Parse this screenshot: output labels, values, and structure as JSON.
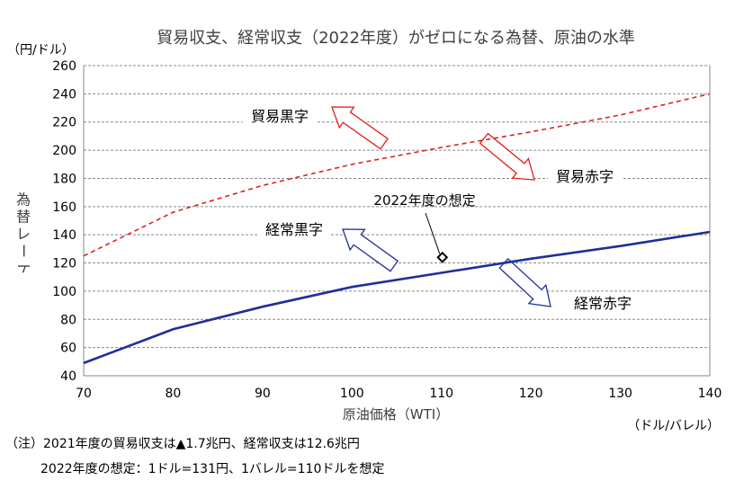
{
  "chart_data": {
    "type": "line",
    "title": "貿易収支、経常収支（2022年度）がゼロになる為替、原油の水準",
    "y_unit": "（円/ドル）",
    "ylabel": "為替レート",
    "xlabel": "原油価格（WTI）",
    "x_unit": "（ドル/バレル）",
    "xlim": [
      70,
      140
    ],
    "ylim": [
      40,
      260
    ],
    "x_ticks": [
      70,
      80,
      90,
      100,
      110,
      120,
      130,
      140
    ],
    "y_ticks": [
      40,
      60,
      80,
      100,
      120,
      140,
      160,
      180,
      200,
      220,
      240,
      260
    ],
    "grid": "horizontal dashed",
    "series": [
      {
        "style": "dashed",
        "color": "#e0201e",
        "x": [
          70,
          80,
          90,
          100,
          110,
          120,
          130,
          140
        ],
        "y": [
          125,
          156,
          175,
          190,
          202,
          213,
          225,
          240
        ]
      },
      {
        "style": "solid",
        "color": "#1f2f9a",
        "x": [
          70,
          80,
          90,
          100,
          110,
          120,
          130,
          140
        ],
        "y": [
          49,
          73,
          89,
          103,
          113,
          123,
          132,
          142
        ]
      }
    ],
    "marker": {
      "x": 110,
      "y": 131,
      "shape": "diamond",
      "label": "2022年度の想定"
    },
    "annotations": {
      "trade_surplus": "貿易黒字",
      "trade_deficit": "貿易赤字",
      "current_surplus": "経常黒字",
      "current_deficit": "経常赤字"
    }
  },
  "notes": {
    "line1": "（注）2021年度の貿易収支は▲1.7兆円、経常収支は12.6兆円",
    "line2": "2022年度の想定：1ドル=131円、1バレル=110ドルを想定"
  }
}
